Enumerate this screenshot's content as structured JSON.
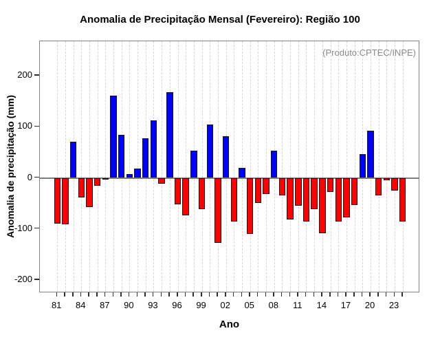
{
  "title": "Anomalia de Precipitação Mensal (Fevereiro): Região 100",
  "annotation": "(Produto:CPTEC/INPE)",
  "xlabel": "Ano",
  "ylabel": "Anomalia de precipitação (mm)",
  "chart_data": {
    "type": "bar",
    "x": [
      1981,
      1982,
      1983,
      1984,
      1985,
      1986,
      1987,
      1988,
      1989,
      1990,
      1991,
      1992,
      1993,
      1994,
      1995,
      1996,
      1997,
      1998,
      1999,
      2000,
      2001,
      2002,
      2003,
      2004,
      2005,
      2006,
      2007,
      2008,
      2009,
      2010,
      2011,
      2012,
      2013,
      2014,
      2015,
      2016,
      2017,
      2018,
      2019,
      2020,
      2021,
      2022,
      2023,
      2024
    ],
    "values": [
      -89,
      -91,
      71,
      -39,
      -57,
      -15,
      -4,
      161,
      84,
      8,
      18,
      77,
      112,
      -11,
      168,
      -52,
      -74,
      53,
      -61,
      105,
      -127,
      82,
      -85,
      20,
      -110,
      -49,
      -31,
      53,
      -34,
      -82,
      -55,
      -86,
      -61,
      -108,
      -28,
      -86,
      -77,
      -53,
      47,
      92,
      -35,
      -5,
      -25,
      -85
    ],
    "x_tick_labels": [
      "81",
      "84",
      "87",
      "90",
      "93",
      "96",
      "99",
      "02",
      "05",
      "08",
      "11",
      "14",
      "17",
      "20",
      "23"
    ],
    "x_tick_label_every": 3,
    "y_ticks": [
      -200,
      -100,
      0,
      100,
      200
    ],
    "y_tick_labels": [
      "-200",
      "-100",
      "0",
      "100",
      "200"
    ],
    "ylim": [
      -225,
      267
    ],
    "positive_color": "#0000ff",
    "negative_color": "#ff0000",
    "grid": "vertical-dashed",
    "legend": "none"
  }
}
